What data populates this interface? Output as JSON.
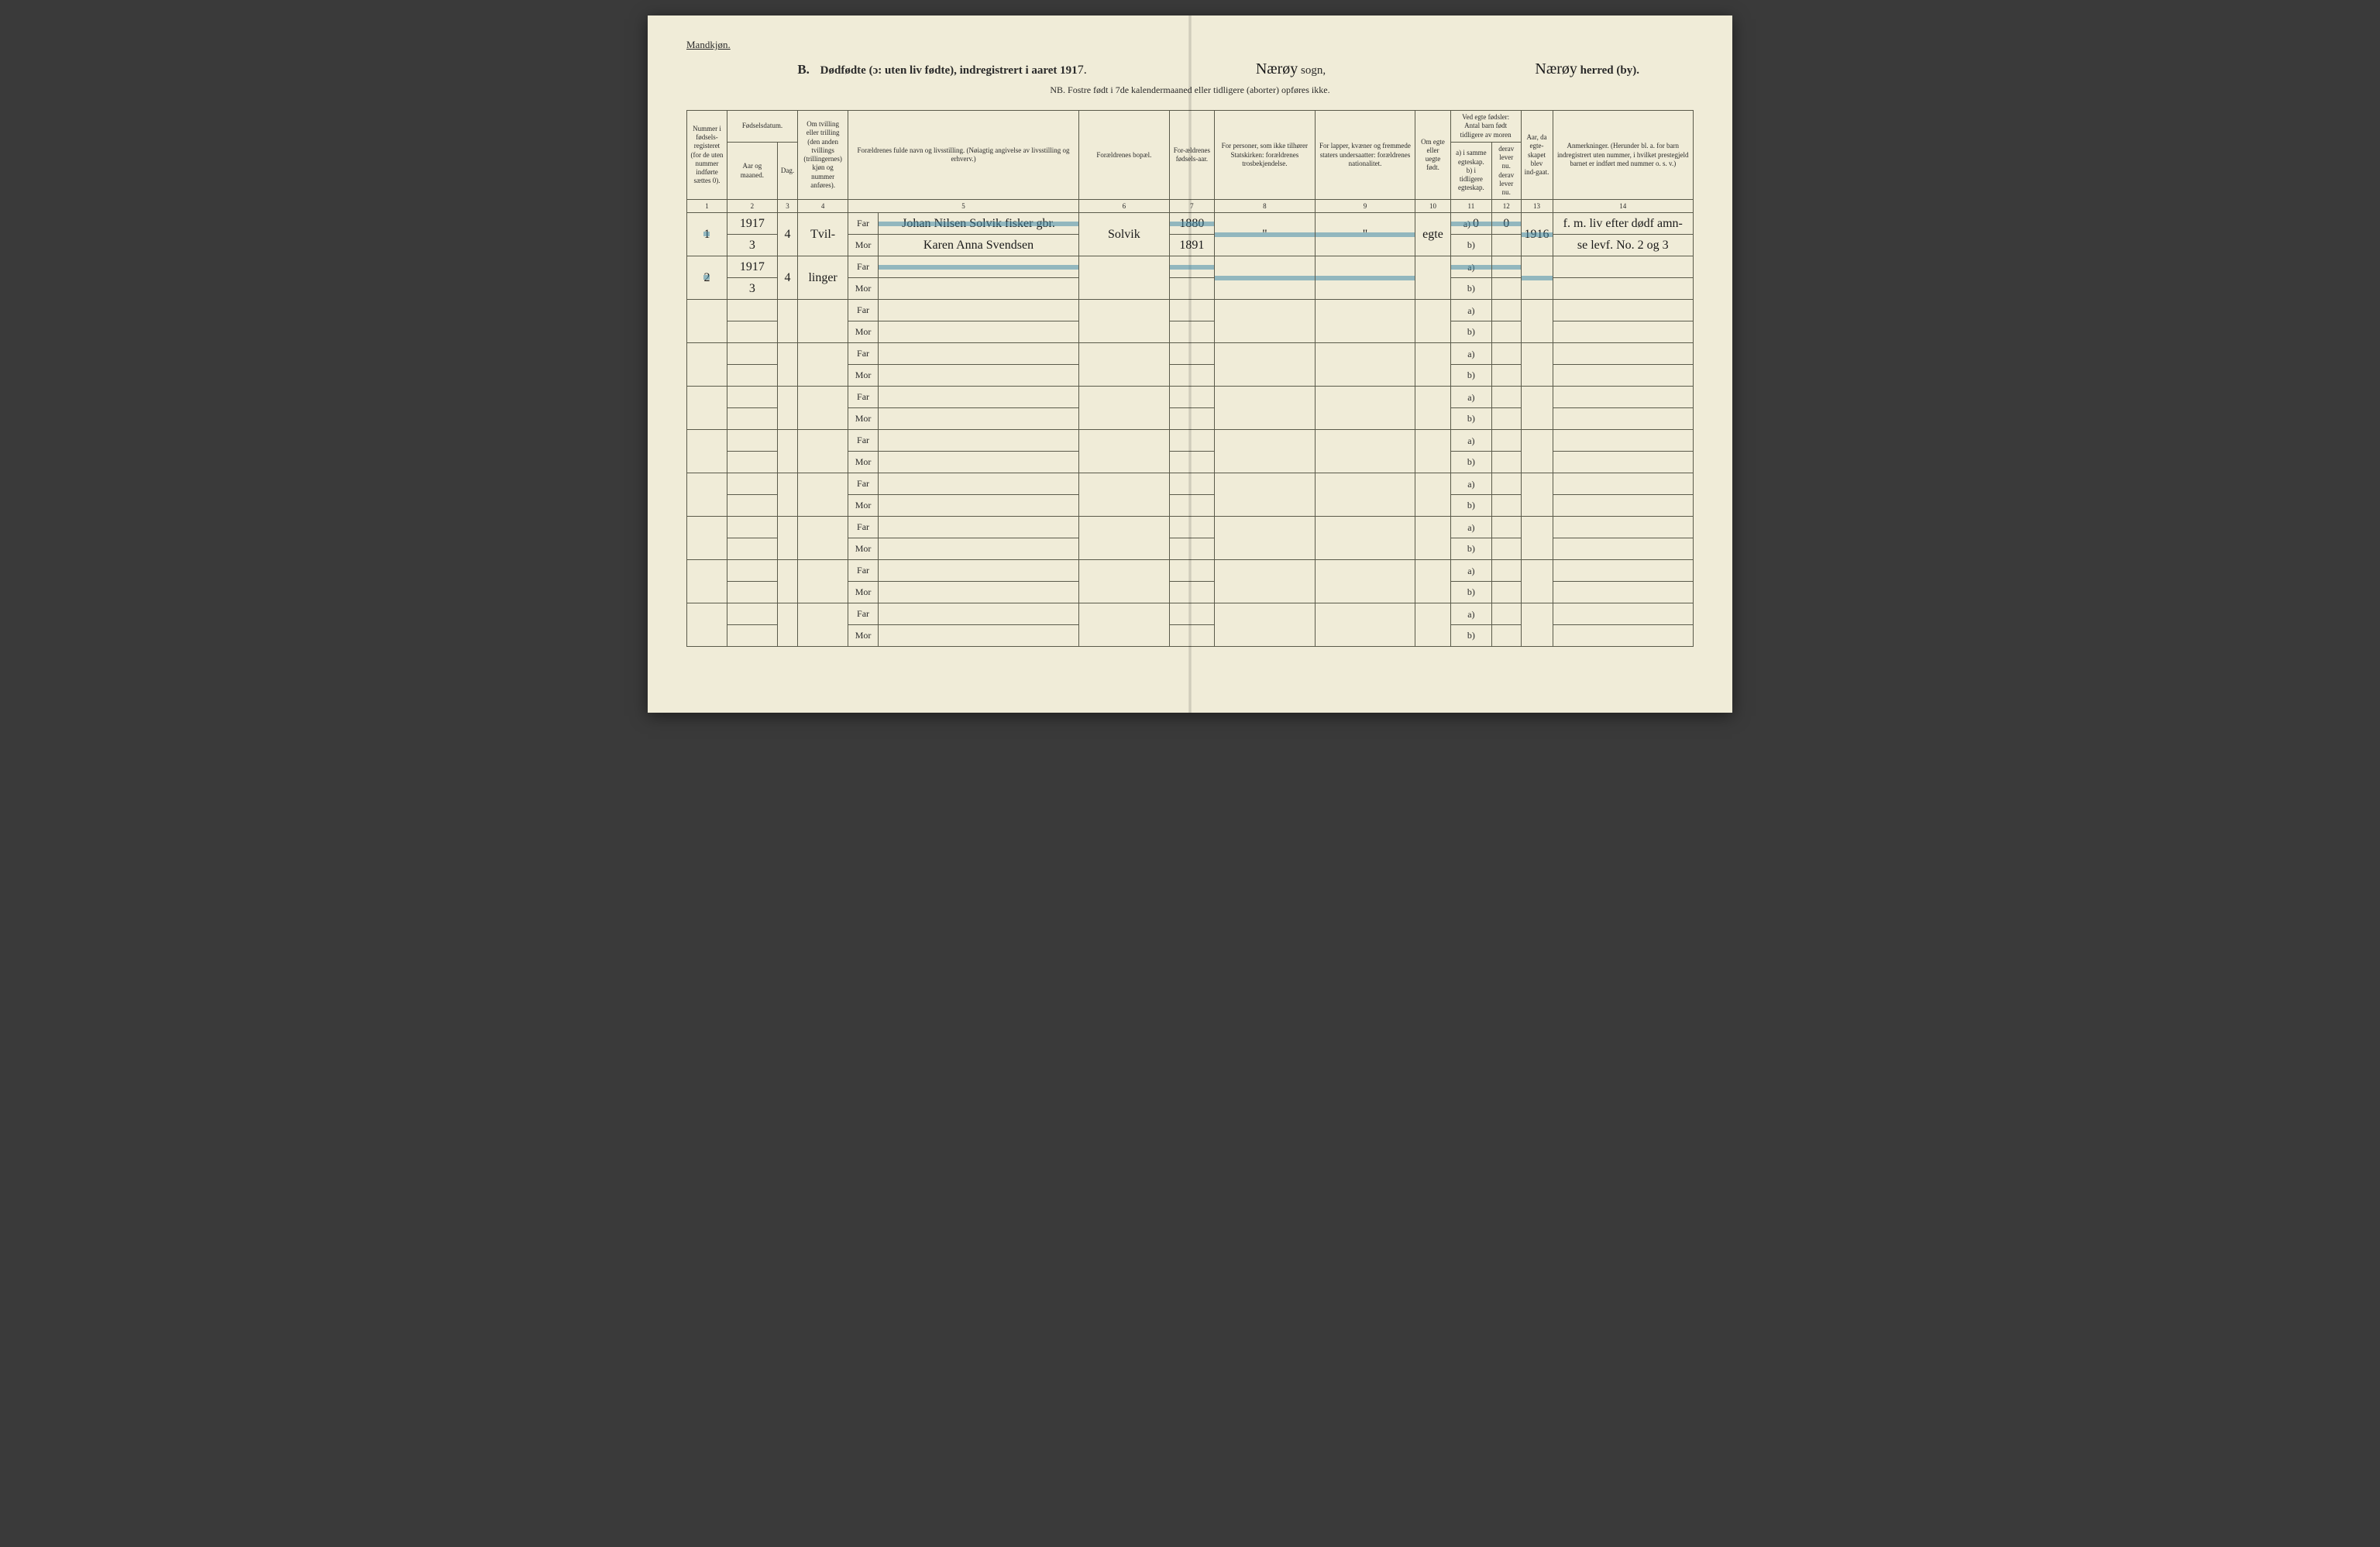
{
  "page": {
    "background_color": "#f0ecd8",
    "ink_color": "#2a2a2a",
    "rule_color": "#5a5a4a",
    "highlight_color": "rgba(70,140,170,0.55)"
  },
  "header": {
    "corner_label": "Mandkjøn.",
    "section_letter": "B.",
    "title_main": "Dødfødte (ɔ: uten liv fødte), indregistrert i aaret 191",
    "year_suffix": "7.",
    "sogn_label": "sogn,",
    "sogn_value": "Nærøy",
    "herred_label": "herred (by).",
    "herred_value": "Nærøy",
    "nb_line": "NB.  Fostre født i 7de kalendermaaned eller tidligere (aborter) opføres ikke."
  },
  "columns": {
    "c1": "Nummer i fødsels-registeret (for de uten nummer indførte sættes 0).",
    "c2_group": "Fødselsdatum.",
    "c2a": "Aar og maaned.",
    "c2b": "Dag.",
    "c4": "Om tvilling eller trilling (den anden tvillings (trillingernes) kjøn og nummer anføres).",
    "c5": "Forældrenes fulde navn og livsstilling. (Nøiagtig angivelse av livsstilling og erhverv.)",
    "c6": "Forældrenes bopæl.",
    "c7": "For-ældrenes fødsels-aar.",
    "c8": "For personer, som ikke tilhører Statskirken: forældrenes trosbekjendelse.",
    "c9": "For lapper, kvæner og fremmede staters undersaatter: forældrenes nationalitet.",
    "c10": "Om egte eller uegte født.",
    "c11_group": "Ved egte fødsler: Antal barn født tidligere av moren",
    "c11a": "a) i samme egteskap.",
    "c11b": "b) i tidligere egteskap.",
    "c12a": "derav lever nu.",
    "c12b": "derav lever nu.",
    "c13": "Aar, da egte-skapet blev ind-gaat.",
    "c14": "Anmerkninger. (Herunder bl. a. for barn indregistrert uten nummer, i hvilket prestegjeld barnet er indført med nummer o. s. v.)",
    "numbers": [
      "1",
      "2",
      "3",
      "4",
      "5",
      "6",
      "7",
      "8",
      "9",
      "10",
      "11",
      "12",
      "13",
      "14"
    ]
  },
  "labels": {
    "far": "Far",
    "mor": "Mor",
    "a": "a)",
    "b": "b)"
  },
  "entries": [
    {
      "num": "1",
      "year": "1917",
      "month_day_a": "3",
      "month_day_b": "4",
      "twin": "Tvil-",
      "far_name": "Johan Nilsen Solvik  fisker gbr.",
      "mor_name": "Karen Anna Svendsen",
      "bopael": "Solvik",
      "far_birth": "1880",
      "mor_birth": "1891",
      "col8": "\"",
      "col9": "\"",
      "egte": "egte",
      "a_val": "0",
      "a_derav": "0",
      "marriage_year": "1916",
      "note_top": "f. m. liv efter dødf amn-",
      "note_bot": "se levf. No. 2 og 3",
      "struck": true
    },
    {
      "num": "2",
      "year": "1917",
      "month_day_a": "3",
      "month_day_b": "4",
      "twin": "linger",
      "far_name": "",
      "mor_name": "",
      "bopael": "",
      "far_birth": "",
      "mor_birth": "",
      "col8": "",
      "col9": "",
      "egte": "",
      "a_val": "",
      "a_derav": "",
      "marriage_year": "",
      "note_top": "",
      "note_bot": "",
      "struck": true
    }
  ],
  "blank_pairs": 8
}
